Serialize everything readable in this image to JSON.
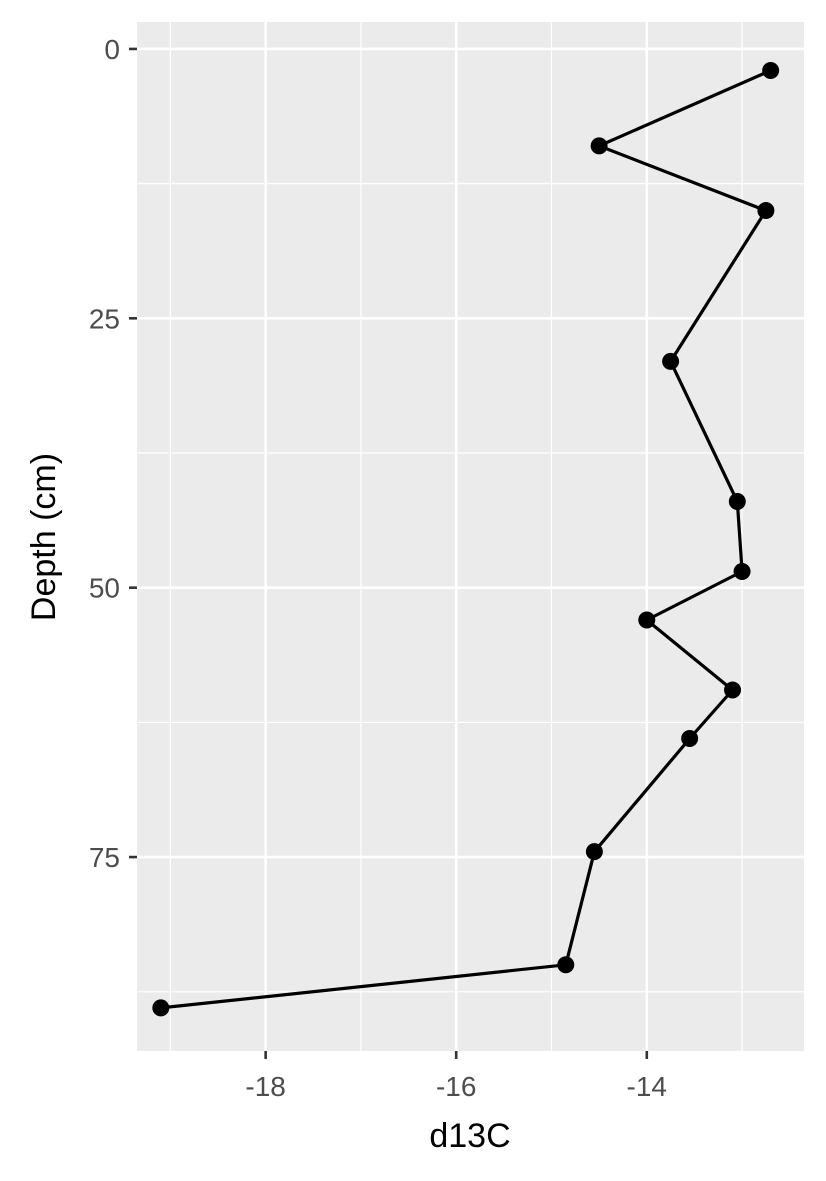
{
  "chart_data": {
    "type": "line",
    "title": "",
    "xlabel": "d13C",
    "ylabel": "Depth (cm)",
    "xlim": [
      -19.35,
      -12.35
    ],
    "ylim": [
      -2.5,
      93
    ],
    "y_reversed": true,
    "grid": true,
    "x_ticks": [
      -18,
      -16,
      -14
    ],
    "x_tick_labels": [
      "-18",
      "-16",
      "-14"
    ],
    "y_ticks": [
      0,
      25,
      50,
      75
    ],
    "y_tick_labels": [
      "0",
      "25",
      "50",
      "75"
    ],
    "points": [
      {
        "x": -12.7,
        "y": 2
      },
      {
        "x": -14.5,
        "y": 9
      },
      {
        "x": -12.75,
        "y": 15
      },
      {
        "x": -13.75,
        "y": 29
      },
      {
        "x": -13.05,
        "y": 42
      },
      {
        "x": -13.0,
        "y": 48.5
      },
      {
        "x": -14.0,
        "y": 53
      },
      {
        "x": -13.1,
        "y": 59.5
      },
      {
        "x": -13.55,
        "y": 64
      },
      {
        "x": -14.55,
        "y": 74.5
      },
      {
        "x": -14.85,
        "y": 85
      },
      {
        "x": -19.1,
        "y": 89
      }
    ],
    "colors": {
      "panel_bg": "#ebebeb",
      "grid": "#ffffff",
      "line": "#000000",
      "point": "#000000",
      "tick_text": "#4d4d4d",
      "tick_mark": "#333333",
      "title_text": "#000000"
    }
  }
}
